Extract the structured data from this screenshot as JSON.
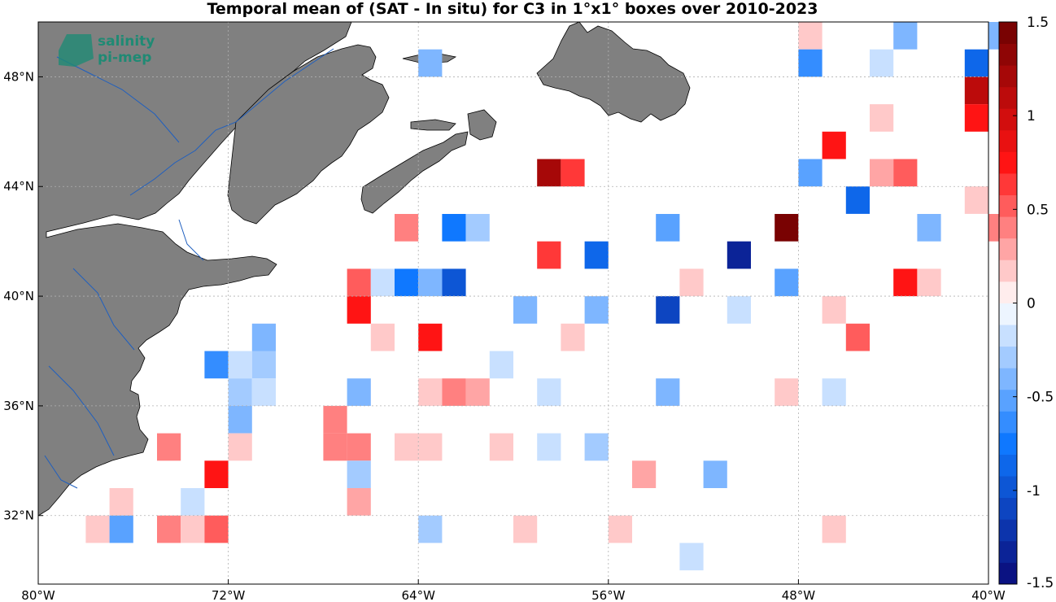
{
  "title": "Temporal mean of (SAT - In situ) for C3 in 1°x1° boxes over 2010-2023",
  "logo": {
    "line1": "salinity",
    "line2": "pi-mep"
  },
  "map": {
    "lon_range": [
      -80,
      -40
    ],
    "lat_range": [
      29.5,
      50
    ],
    "lon_ticks": [
      {
        "value": -80,
        "label": "80°W"
      },
      {
        "value": -72,
        "label": "72°W"
      },
      {
        "value": -64,
        "label": "64°W"
      },
      {
        "value": -56,
        "label": "56°W"
      },
      {
        "value": -48,
        "label": "48°W"
      },
      {
        "value": -40,
        "label": "40°W"
      }
    ],
    "lat_ticks": [
      {
        "value": 48,
        "label": "48°N"
      },
      {
        "value": 44,
        "label": "44°N"
      },
      {
        "value": 40,
        "label": "40°N"
      },
      {
        "value": 36,
        "label": "36°N"
      },
      {
        "value": 32,
        "label": "32°N"
      }
    ],
    "land_color": "#808080",
    "grid": true
  },
  "colorbar": {
    "range": [
      -1.5,
      1.5
    ],
    "levels": 26,
    "ticks": [
      {
        "value": 1.5,
        "label": "1.5"
      },
      {
        "value": 1,
        "label": "1"
      },
      {
        "value": 0.5,
        "label": "0.5"
      },
      {
        "value": 0,
        "label": "0"
      },
      {
        "value": -0.5,
        "label": "-0.5"
      },
      {
        "value": -1,
        "label": "-1"
      },
      {
        "value": -1.5,
        "label": "-1.5"
      }
    ]
  },
  "chart_data": {
    "type": "heatmap",
    "title": "Temporal mean of (SAT - In situ) for C3 in 1°x1° boxes over 2010-2023",
    "cell_size_deg": 1,
    "cells": [
      {
        "lon": -47.5,
        "lat": 49.5,
        "value": 0.12
      },
      {
        "lon": -43.5,
        "lat": 49.5,
        "value": -0.35
      },
      {
        "lon": -39.5,
        "lat": 49.5,
        "value": -0.35
      },
      {
        "lon": -63.5,
        "lat": 48.5,
        "value": -0.35
      },
      {
        "lon": -47.5,
        "lat": 48.5,
        "value": -0.6
      },
      {
        "lon": -44.5,
        "lat": 48.5,
        "value": -0.12
      },
      {
        "lon": -40.5,
        "lat": 48.5,
        "value": -0.85
      },
      {
        "lon": -40.5,
        "lat": 47.5,
        "value": 1.15
      },
      {
        "lon": -44.5,
        "lat": 46.5,
        "value": 0.12
      },
      {
        "lon": -40.5,
        "lat": 46.5,
        "value": 0.7
      },
      {
        "lon": -46.5,
        "lat": 45.5,
        "value": 0.75
      },
      {
        "lon": -58.5,
        "lat": 44.5,
        "value": 1.2
      },
      {
        "lon": -57.5,
        "lat": 44.5,
        "value": 0.65
      },
      {
        "lon": -47.5,
        "lat": 44.5,
        "value": -0.5
      },
      {
        "lon": -44.5,
        "lat": 44.5,
        "value": 0.3
      },
      {
        "lon": -43.5,
        "lat": 44.5,
        "value": 0.55
      },
      {
        "lon": -45.5,
        "lat": 43.5,
        "value": -0.85
      },
      {
        "lon": -40.5,
        "lat": 43.5,
        "value": 0.12
      },
      {
        "lon": -64.5,
        "lat": 42.5,
        "value": 0.4
      },
      {
        "lon": -62.5,
        "lat": 42.5,
        "value": -0.7
      },
      {
        "lon": -61.5,
        "lat": 42.5,
        "value": -0.25
      },
      {
        "lon": -53.5,
        "lat": 42.5,
        "value": -0.5
      },
      {
        "lon": -48.5,
        "lat": 42.5,
        "value": 1.4
      },
      {
        "lon": -42.5,
        "lat": 42.5,
        "value": -0.35
      },
      {
        "lon": -39.5,
        "lat": 42.5,
        "value": 0.4
      },
      {
        "lon": -58.5,
        "lat": 41.5,
        "value": 0.6
      },
      {
        "lon": -56.5,
        "lat": 41.5,
        "value": -0.9
      },
      {
        "lon": -50.5,
        "lat": 41.5,
        "value": -1.3
      },
      {
        "lon": -66.5,
        "lat": 40.5,
        "value": 0.5
      },
      {
        "lon": -65.5,
        "lat": 40.5,
        "value": -0.12
      },
      {
        "lon": -64.5,
        "lat": 40.5,
        "value": -0.75
      },
      {
        "lon": -63.5,
        "lat": 40.5,
        "value": -0.4
      },
      {
        "lon": -62.5,
        "lat": 40.5,
        "value": -1.0
      },
      {
        "lon": -52.5,
        "lat": 40.5,
        "value": 0.12
      },
      {
        "lon": -48.5,
        "lat": 40.5,
        "value": -0.5
      },
      {
        "lon": -43.5,
        "lat": 40.5,
        "value": 0.7
      },
      {
        "lon": -42.5,
        "lat": 40.5,
        "value": 0.12
      },
      {
        "lon": -66.5,
        "lat": 39.5,
        "value": 0.7
      },
      {
        "lon": -59.5,
        "lat": 39.5,
        "value": -0.35
      },
      {
        "lon": -56.5,
        "lat": 39.5,
        "value": -0.35
      },
      {
        "lon": -53.5,
        "lat": 39.5,
        "value": -1.05
      },
      {
        "lon": -50.5,
        "lat": 39.5,
        "value": -0.12
      },
      {
        "lon": -46.5,
        "lat": 39.5,
        "value": 0.12
      },
      {
        "lon": -70.5,
        "lat": 38.5,
        "value": -0.35
      },
      {
        "lon": -65.5,
        "lat": 38.5,
        "value": 0.12
      },
      {
        "lon": -63.5,
        "lat": 38.5,
        "value": 0.7
      },
      {
        "lon": -57.5,
        "lat": 38.5,
        "value": 0.12
      },
      {
        "lon": -45.5,
        "lat": 38.5,
        "value": 0.5
      },
      {
        "lon": -72.5,
        "lat": 37.5,
        "value": -0.6
      },
      {
        "lon": -71.5,
        "lat": 37.5,
        "value": -0.12
      },
      {
        "lon": -70.5,
        "lat": 37.5,
        "value": -0.25
      },
      {
        "lon": -60.5,
        "lat": 37.5,
        "value": -0.12
      },
      {
        "lon": -71.5,
        "lat": 36.5,
        "value": -0.25
      },
      {
        "lon": -70.5,
        "lat": 36.5,
        "value": -0.12
      },
      {
        "lon": -66.5,
        "lat": 36.5,
        "value": -0.4
      },
      {
        "lon": -63.5,
        "lat": 36.5,
        "value": 0.12
      },
      {
        "lon": -62.5,
        "lat": 36.5,
        "value": 0.4
      },
      {
        "lon": -61.5,
        "lat": 36.5,
        "value": 0.3
      },
      {
        "lon": -58.5,
        "lat": 36.5,
        "value": -0.12
      },
      {
        "lon": -53.5,
        "lat": 36.5,
        "value": -0.35
      },
      {
        "lon": -48.5,
        "lat": 36.5,
        "value": 0.12
      },
      {
        "lon": -46.5,
        "lat": 36.5,
        "value": -0.12
      },
      {
        "lon": -71.5,
        "lat": 35.5,
        "value": -0.4
      },
      {
        "lon": -67.5,
        "lat": 35.5,
        "value": 0.4
      },
      {
        "lon": -74.5,
        "lat": 34.5,
        "value": 0.4
      },
      {
        "lon": -71.5,
        "lat": 34.5,
        "value": 0.12
      },
      {
        "lon": -67.5,
        "lat": 34.5,
        "value": 0.4
      },
      {
        "lon": -66.5,
        "lat": 34.5,
        "value": 0.4
      },
      {
        "lon": -64.5,
        "lat": 34.5,
        "value": 0.12
      },
      {
        "lon": -63.5,
        "lat": 34.5,
        "value": 0.12
      },
      {
        "lon": -60.5,
        "lat": 34.5,
        "value": 0.12
      },
      {
        "lon": -58.5,
        "lat": 34.5,
        "value": -0.12
      },
      {
        "lon": -56.5,
        "lat": 34.5,
        "value": -0.25
      },
      {
        "lon": -72.5,
        "lat": 33.5,
        "value": 0.7
      },
      {
        "lon": -66.5,
        "lat": 33.5,
        "value": -0.25
      },
      {
        "lon": -54.5,
        "lat": 33.5,
        "value": 0.25
      },
      {
        "lon": -51.5,
        "lat": 33.5,
        "value": -0.35
      },
      {
        "lon": -76.5,
        "lat": 32.5,
        "value": 0.12
      },
      {
        "lon": -73.5,
        "lat": 32.5,
        "value": -0.12
      },
      {
        "lon": -66.5,
        "lat": 32.5,
        "value": 0.25
      },
      {
        "lon": -77.5,
        "lat": 31.5,
        "value": 0.12
      },
      {
        "lon": -76.5,
        "lat": 31.5,
        "value": -0.55
      },
      {
        "lon": -74.5,
        "lat": 31.5,
        "value": 0.4
      },
      {
        "lon": -73.5,
        "lat": 31.5,
        "value": 0.12
      },
      {
        "lon": -72.5,
        "lat": 31.5,
        "value": 0.5
      },
      {
        "lon": -63.5,
        "lat": 31.5,
        "value": -0.25
      },
      {
        "lon": -59.5,
        "lat": 31.5,
        "value": 0.12
      },
      {
        "lon": -55.5,
        "lat": 31.5,
        "value": 0.12
      },
      {
        "lon": -46.5,
        "lat": 31.5,
        "value": 0.12
      },
      {
        "lon": -52.5,
        "lat": 30.5,
        "value": -0.12
      }
    ]
  }
}
